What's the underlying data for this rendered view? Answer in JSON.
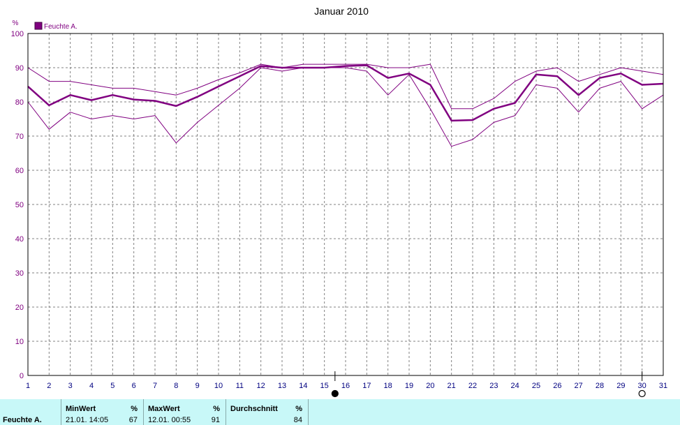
{
  "chart_data": {
    "type": "line",
    "title": "Januar 2010",
    "ylabel": "%",
    "ylim": [
      0,
      100
    ],
    "yticks": [
      0,
      10,
      20,
      30,
      40,
      50,
      60,
      70,
      80,
      90,
      100
    ],
    "x": [
      1,
      2,
      3,
      4,
      5,
      6,
      7,
      8,
      9,
      10,
      11,
      12,
      13,
      14,
      15,
      16,
      17,
      18,
      19,
      20,
      21,
      22,
      23,
      24,
      25,
      26,
      27,
      28,
      29,
      30,
      31
    ],
    "legend": "Feuchte A.",
    "legend_position": "top-left",
    "grid": true,
    "series": [
      {
        "role": "average",
        "color": "#800080",
        "values": [
          84.5,
          79,
          82,
          80.5,
          82,
          80.7,
          80.3,
          78.8,
          81.5,
          84.5,
          87.5,
          90.5,
          90,
          90,
          90,
          90.5,
          90.7,
          87,
          88.3,
          85,
          74.5,
          74.7,
          78,
          79.7,
          88,
          87.5,
          82,
          87,
          88.3,
          85,
          85.3
        ]
      },
      {
        "role": "max",
        "color": "#800080",
        "values": [
          90,
          86,
          86,
          85,
          84,
          84,
          83,
          82,
          84,
          86.5,
          88.5,
          91,
          90,
          91,
          91,
          91,
          91,
          90,
          90,
          91,
          78,
          78,
          81,
          86,
          89,
          90,
          86,
          88,
          90,
          89,
          88
        ]
      },
      {
        "role": "min",
        "color": "#800080",
        "values": [
          80,
          72,
          77,
          75,
          76,
          75,
          76,
          68,
          74,
          79,
          84,
          90,
          89,
          90,
          90,
          90,
          89,
          82,
          88,
          78,
          67,
          69,
          74,
          76,
          85,
          84,
          77,
          84,
          86,
          78,
          82
        ]
      }
    ],
    "markers": [
      {
        "x": 15.5,
        "symbol": "filled-circle"
      },
      {
        "x": 30,
        "symbol": "open-circle"
      }
    ]
  },
  "stats": {
    "series_name": "Feuchte A.",
    "min_header": "MinWert",
    "min_unit": "%",
    "min_time": "21.01.  14:05",
    "min_value": "67",
    "max_header": "MaxWert",
    "max_unit": "%",
    "max_time": "12.01.  00:55",
    "max_value": "91",
    "avg_header": "Durchschnitt",
    "avg_unit": "%",
    "avg_value": "84"
  }
}
